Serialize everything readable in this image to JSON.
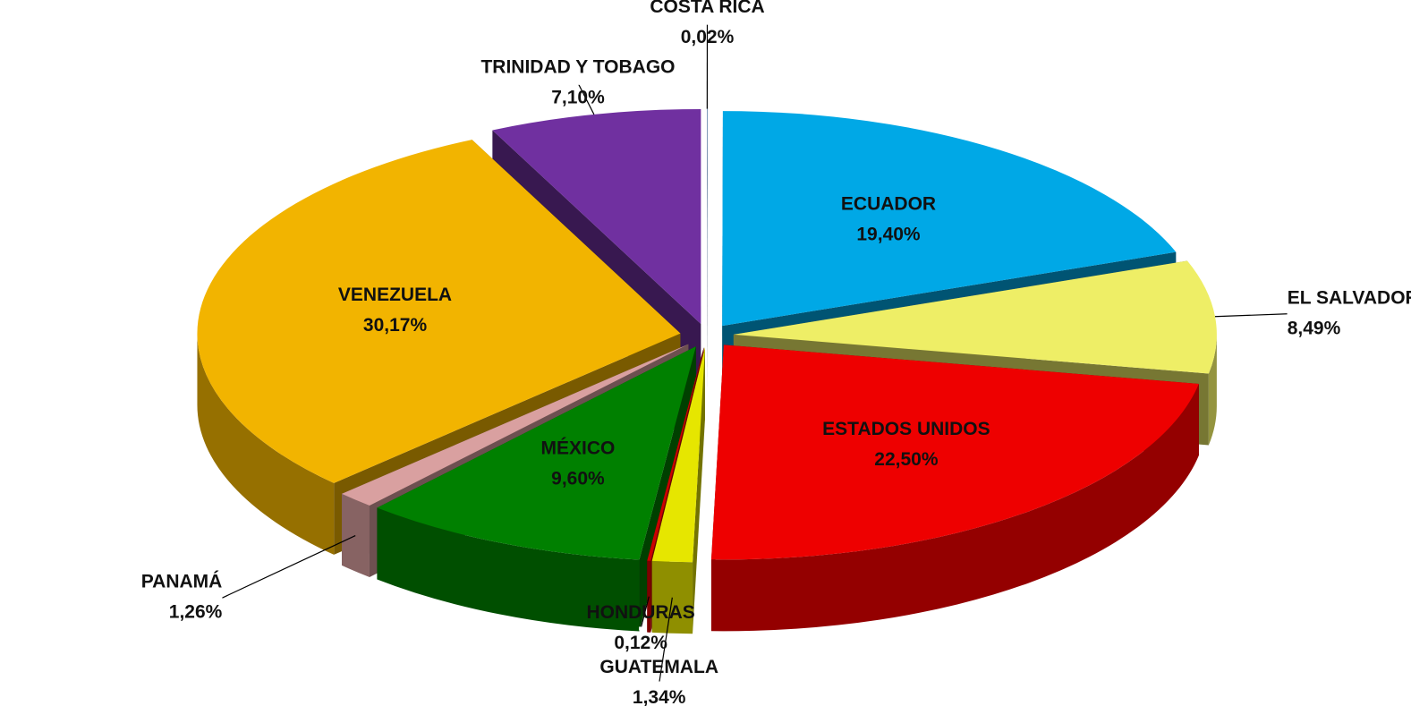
{
  "chart_data": {
    "type": "pie",
    "categories": [
      "COSTA RICA",
      "ECUADOR",
      "EL SALVADOR",
      "ESTADOS UNIDOS",
      "GUATEMALA",
      "HONDURAS",
      "MÉXICO",
      "PANAMÁ",
      "VENEZUELA",
      "TRINIDAD Y TOBAGO"
    ],
    "values": [
      0.02,
      19.4,
      8.49,
      22.5,
      1.34,
      0.12,
      9.6,
      1.26,
      30.17,
      7.1
    ],
    "value_labels": [
      "0,02%",
      "19,40%",
      "8,49%",
      "22,50%",
      "1,34%",
      "0,12%",
      "9,60%",
      "1,26%",
      "30,17%",
      "7,10%"
    ],
    "colors": [
      "#3f6a96",
      "#00a8e6",
      "#eeee66",
      "#ee0000",
      "#e6e600",
      "#cc0000",
      "#008000",
      "#d9a0a0",
      "#f2b400",
      "#7030a0"
    ]
  }
}
